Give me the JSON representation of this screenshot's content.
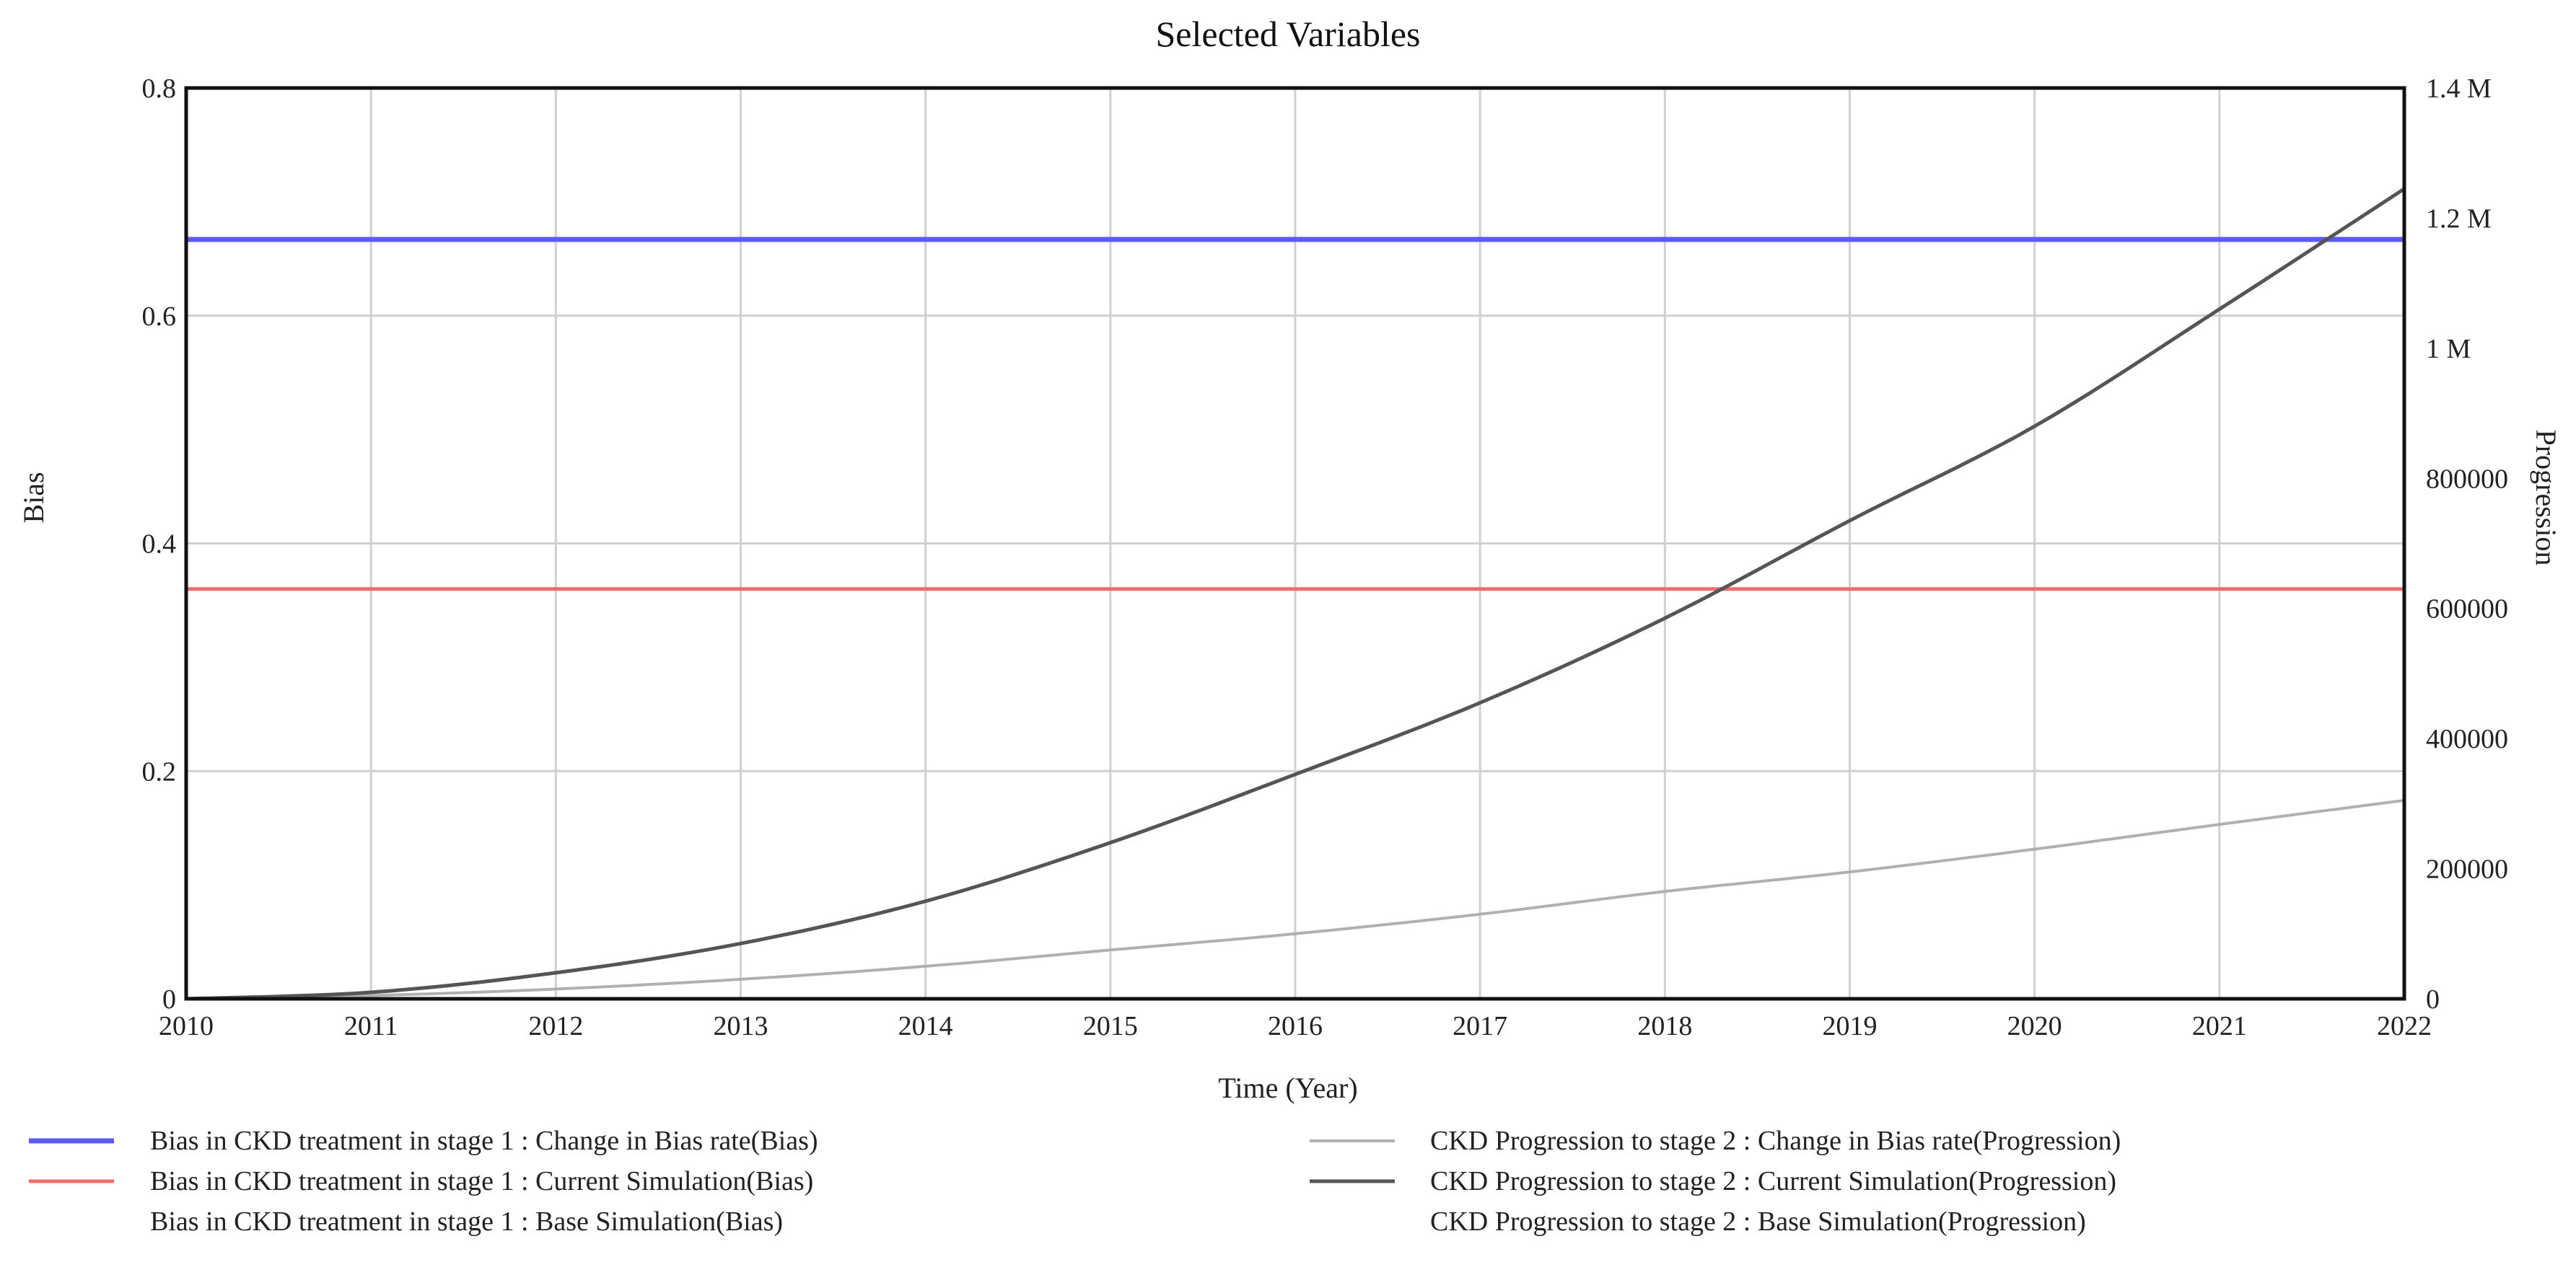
{
  "chart_data": {
    "type": "line",
    "title": "Selected Variables",
    "xlabel": "Time (Year)",
    "ylabel_left": "Bias",
    "ylabel_right": "Progression",
    "xlim": [
      2010,
      2022
    ],
    "x_ticks": [
      "2010",
      "2011",
      "2012",
      "2013",
      "2014",
      "2015",
      "2016",
      "2017",
      "2018",
      "2019",
      "2020",
      "2021",
      "2022"
    ],
    "ylim_left": [
      0,
      0.8
    ],
    "y_ticks_left": [
      {
        "value": 0,
        "label": "0"
      },
      {
        "value": 0.2,
        "label": "0.2"
      },
      {
        "value": 0.4,
        "label": "0.4"
      },
      {
        "value": 0.6,
        "label": "0.6"
      },
      {
        "value": 0.8,
        "label": "0.8"
      }
    ],
    "ylim_right": [
      0,
      1400000
    ],
    "y_ticks_right": [
      {
        "value": 0,
        "label": "0"
      },
      {
        "value": 200000,
        "label": "200000"
      },
      {
        "value": 400000,
        "label": "400000"
      },
      {
        "value": 600000,
        "label": "600000"
      },
      {
        "value": 800000,
        "label": "800000"
      },
      {
        "value": 1000000,
        "label": "1 M"
      },
      {
        "value": 1200000,
        "label": "1.2 M"
      },
      {
        "value": 1400000,
        "label": "1.4 M"
      }
    ],
    "grid": true,
    "legend_position": "bottom",
    "series": [
      {
        "name": "Bias in CKD treatment in stage 1 : Change in Bias rate(Bias)",
        "axis": "left",
        "color": "#5b5bf0",
        "width": 7,
        "draw": true,
        "x": [
          2010,
          2022
        ],
        "y": [
          0.667,
          0.667
        ]
      },
      {
        "name": "Bias in CKD treatment in stage 1 : Current Simulation(Bias)",
        "axis": "left",
        "color": "#f06b6b",
        "width": 5,
        "draw": true,
        "x": [
          2010,
          2022
        ],
        "y": [
          0.36,
          0.36
        ]
      },
      {
        "name": "Bias in CKD treatment in stage 1 : Base Simulation(Bias)",
        "axis": "left",
        "color": "#cccccc",
        "width": 0,
        "draw": false,
        "x": [],
        "y": []
      },
      {
        "name": "CKD Progression to stage 2 : Change in Bias rate(Progression)",
        "axis": "right",
        "color": "#b0b0b0",
        "width": 4,
        "draw": true,
        "x": [
          2010,
          2011,
          2012,
          2013,
          2014,
          2015,
          2016,
          2017,
          2018,
          2019,
          2020,
          2021,
          2022
        ],
        "y": [
          0,
          5000,
          15000,
          30000,
          50000,
          75000,
          100000,
          130000,
          165000,
          195000,
          230000,
          268000,
          305000
        ]
      },
      {
        "name": "CKD Progression to stage 2 : Current Simulation(Progression)",
        "axis": "right",
        "color": "#555555",
        "width": 5,
        "draw": true,
        "x": [
          2010,
          2011,
          2012,
          2013,
          2014,
          2015,
          2016,
          2017,
          2018,
          2019,
          2020,
          2021,
          2022
        ],
        "y": [
          0,
          10000,
          40000,
          85000,
          150000,
          240000,
          345000,
          455000,
          585000,
          735000,
          880000,
          1060000,
          1245000
        ]
      },
      {
        "name": "CKD Progression to stage 2 : Base Simulation(Progression)",
        "axis": "right",
        "color": "#333333",
        "width": 0,
        "draw": false,
        "x": [],
        "y": []
      }
    ]
  }
}
